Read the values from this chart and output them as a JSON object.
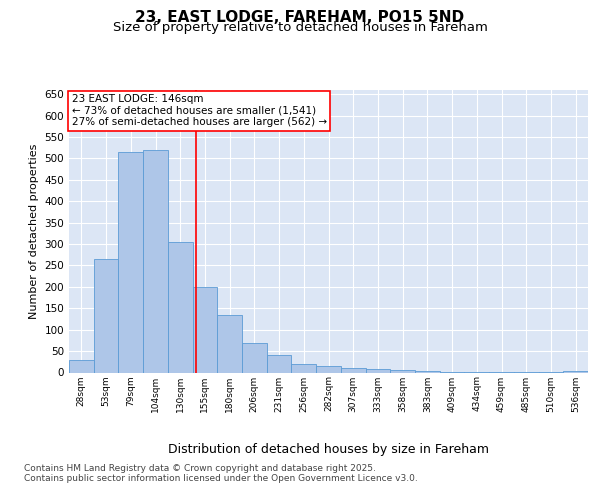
{
  "title": "23, EAST LODGE, FAREHAM, PO15 5ND",
  "subtitle": "Size of property relative to detached houses in Fareham",
  "xlabel": "Distribution of detached houses by size in Fareham",
  "ylabel": "Number of detached properties",
  "categories": [
    "28sqm",
    "53sqm",
    "79sqm",
    "104sqm",
    "130sqm",
    "155sqm",
    "180sqm",
    "206sqm",
    "231sqm",
    "256sqm",
    "282sqm",
    "307sqm",
    "333sqm",
    "358sqm",
    "383sqm",
    "409sqm",
    "434sqm",
    "459sqm",
    "485sqm",
    "510sqm",
    "536sqm"
  ],
  "values": [
    30,
    265,
    515,
    520,
    305,
    200,
    135,
    68,
    40,
    20,
    15,
    10,
    8,
    5,
    3,
    2,
    1,
    1,
    1,
    1,
    3
  ],
  "bar_color": "#aec6e8",
  "bar_edge_color": "#5b9bd5",
  "ylim": [
    0,
    660
  ],
  "yticks": [
    0,
    50,
    100,
    150,
    200,
    250,
    300,
    350,
    400,
    450,
    500,
    550,
    600,
    650
  ],
  "bg_color": "#dce6f5",
  "grid_color": "#ffffff",
  "red_line_x": 4.62,
  "annotation_text": "23 EAST LODGE: 146sqm\n← 73% of detached houses are smaller (1,541)\n27% of semi-detached houses are larger (562) →",
  "footer_line1": "Contains HM Land Registry data © Crown copyright and database right 2025.",
  "footer_line2": "Contains public sector information licensed under the Open Government Licence v3.0.",
  "title_fontsize": 11,
  "subtitle_fontsize": 9.5,
  "xlabel_fontsize": 9,
  "ylabel_fontsize": 8,
  "annotation_fontsize": 7.5,
  "footer_fontsize": 6.5,
  "xtick_fontsize": 6.5,
  "ytick_fontsize": 7.5
}
